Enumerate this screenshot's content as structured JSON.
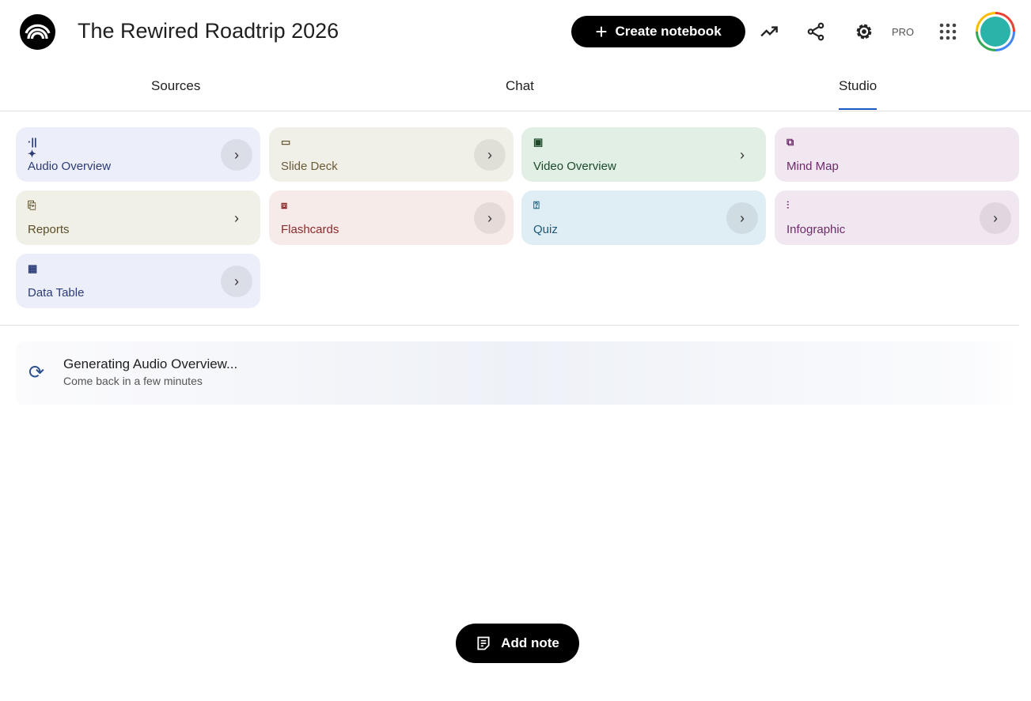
{
  "header": {
    "title": "The Rewired Roadtrip 2026",
    "create_label": "Create notebook",
    "pro_label": "PRO"
  },
  "tabs": [
    {
      "label": "Sources"
    },
    {
      "label": "Chat"
    },
    {
      "label": "Studio",
      "active": true
    }
  ],
  "studio_cards": [
    {
      "label": "Audio Overview",
      "icon": "audio-waveform-sparkle-icon",
      "bg": "#eceef9",
      "color": "#2b3c78"
    },
    {
      "label": "Slide Deck",
      "icon": "slides-icon",
      "bg": "#f1f0e8",
      "color": "#6b5a38"
    },
    {
      "label": "Video Overview",
      "icon": "video-icon",
      "bg": "#e1efe4",
      "color": "#1e4a2a"
    },
    {
      "label": "Mind Map",
      "icon": "mind-map-icon",
      "bg": "#f1e7f1",
      "color": "#6d2a69"
    },
    {
      "label": "Reports",
      "icon": "reports-icon",
      "bg": "#f1f0e6",
      "color": "#5b4e2a"
    },
    {
      "label": "Flashcards",
      "icon": "flashcards-icon",
      "bg": "#f7ebe9",
      "color": "#8a2b2b"
    },
    {
      "label": "Quiz",
      "icon": "quiz-icon",
      "bg": "#dfeef5",
      "color": "#1b5a7a"
    },
    {
      "label": "Infographic",
      "icon": "infographic-icon",
      "bg": "#f1e7f1",
      "color": "#6d2a69"
    },
    {
      "label": "Data Table",
      "icon": "data-table-icon",
      "bg": "#eceef9",
      "color": "#2b3c78"
    }
  ],
  "generating": {
    "title": "Generating Audio Overview...",
    "subtitle": "Come back in a few minutes"
  },
  "add_note_label": "Add note"
}
